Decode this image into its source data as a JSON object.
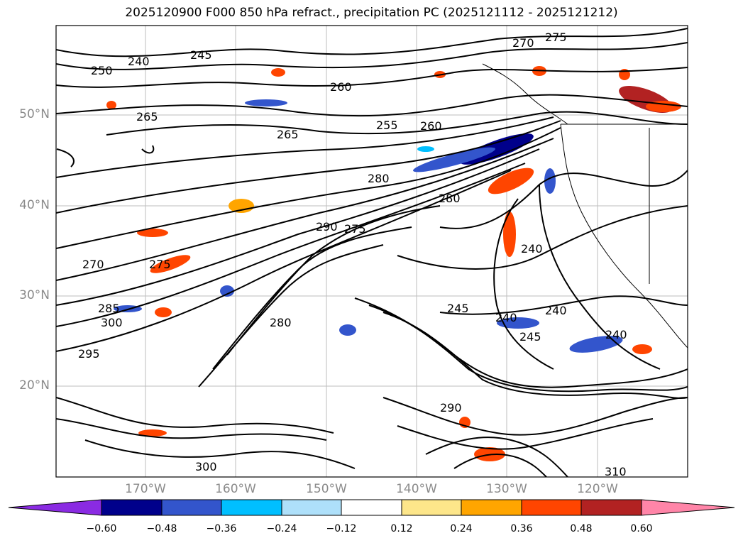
{
  "title": "2025120900 F000 850 hPa refract., precipitation PC (2025121112 - 2025121212)",
  "map": {
    "lat_labels": [
      "50°N",
      "40°N",
      "30°N",
      "20°N"
    ],
    "lon_labels": [
      "170°W",
      "160°W",
      "150°W",
      "140°W",
      "130°W",
      "120°W"
    ],
    "contour_labels": [
      "240",
      "245",
      "250",
      "255",
      "260",
      "265",
      "270",
      "275",
      "280",
      "285",
      "290",
      "295",
      "300",
      "310",
      "260",
      "265",
      "270",
      "275",
      "280",
      "290",
      "240",
      "245",
      "240",
      "240",
      "245",
      "240",
      "300",
      "280",
      "275"
    ]
  },
  "colorbar": {
    "ticks": [
      "−0.60",
      "−0.48",
      "−0.36",
      "−0.24",
      "−0.12",
      "0.12",
      "0.24",
      "0.36",
      "0.48",
      "0.60"
    ],
    "colors": [
      "#8a2be2",
      "#00008b",
      "#3355cc",
      "#00bfff",
      "#aee0fa",
      "#ffffff",
      "#fde68a",
      "#ffa500",
      "#ff4500",
      "#b22222",
      "#ff85a8"
    ]
  }
}
